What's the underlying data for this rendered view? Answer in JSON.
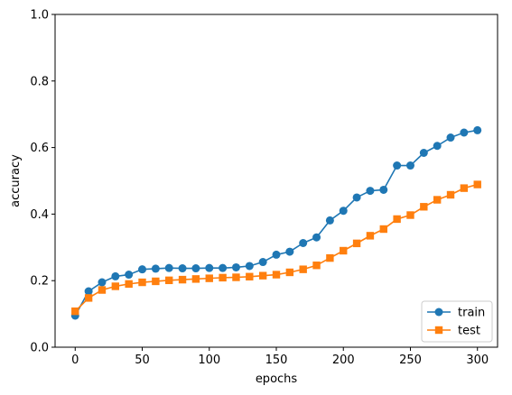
{
  "chart_data": {
    "type": "line",
    "title": "",
    "xlabel": "epochs",
    "ylabel": "accuracy",
    "xlim": [
      -15,
      315
    ],
    "ylim": [
      0.0,
      1.0
    ],
    "xticks": [
      0,
      50,
      100,
      150,
      200,
      250,
      300
    ],
    "yticks": [
      0.0,
      0.2,
      0.4,
      0.6,
      0.8,
      1.0
    ],
    "xtick_labels": [
      "0",
      "50",
      "100",
      "150",
      "200",
      "250",
      "300"
    ],
    "ytick_labels": [
      "0.0",
      "0.2",
      "0.4",
      "0.6",
      "0.8",
      "1.0"
    ],
    "grid": false,
    "legend_position": "lower-right",
    "x": [
      0,
      10,
      20,
      30,
      40,
      50,
      60,
      70,
      80,
      90,
      100,
      110,
      120,
      130,
      140,
      150,
      160,
      170,
      180,
      190,
      200,
      210,
      220,
      230,
      240,
      250,
      260,
      270,
      280,
      290,
      300
    ],
    "series": [
      {
        "name": "train",
        "color": "#1f77b4",
        "marker": "circle",
        "values": [
          0.095,
          0.168,
          0.195,
          0.213,
          0.218,
          0.234,
          0.236,
          0.238,
          0.237,
          0.237,
          0.238,
          0.238,
          0.24,
          0.244,
          0.256,
          0.278,
          0.287,
          0.313,
          0.33,
          0.381,
          0.41,
          0.45,
          0.47,
          0.473,
          0.546,
          0.546,
          0.584,
          0.605,
          0.63,
          0.645,
          0.652
        ]
      },
      {
        "name": "test",
        "color": "#ff7f0e",
        "marker": "square",
        "values": [
          0.108,
          0.148,
          0.172,
          0.183,
          0.19,
          0.195,
          0.198,
          0.201,
          0.203,
          0.205,
          0.207,
          0.209,
          0.21,
          0.212,
          0.215,
          0.218,
          0.225,
          0.234,
          0.246,
          0.268,
          0.29,
          0.312,
          0.335,
          0.355,
          0.385,
          0.397,
          0.422,
          0.443,
          0.458,
          0.478,
          0.489
        ]
      }
    ]
  }
}
